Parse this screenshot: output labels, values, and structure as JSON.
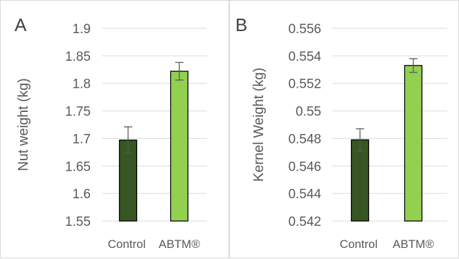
{
  "chart_data": [
    {
      "type": "bar",
      "panel_label": "A",
      "title": "",
      "xlabel": "",
      "ylabel": "Nut weight (kg)",
      "categories": [
        "Control",
        "ABTM®"
      ],
      "values": [
        1.697,
        1.822
      ],
      "errors": [
        0.024,
        0.016
      ],
      "colors": [
        "#375623",
        "#92d050"
      ],
      "ylim": [
        1.55,
        1.9
      ],
      "yticks": [
        1.55,
        1.6,
        1.65,
        1.7,
        1.75,
        1.8,
        1.85,
        1.9
      ],
      "ytick_labels": [
        "1.55",
        "1.6",
        "1.65",
        "1.7",
        "1.75",
        "1.8",
        "1.85",
        "1.9"
      ],
      "grid": true,
      "legend": "none"
    },
    {
      "type": "bar",
      "panel_label": "B",
      "title": "",
      "xlabel": "",
      "ylabel": "Kernel Weight (kg)",
      "categories": [
        "Control",
        "ABTM®"
      ],
      "values": [
        0.5479,
        0.5533
      ],
      "errors": [
        0.0008,
        0.0005
      ],
      "colors": [
        "#375623",
        "#92d050"
      ],
      "ylim": [
        0.542,
        0.556
      ],
      "yticks": [
        0.542,
        0.544,
        0.546,
        0.548,
        0.55,
        0.552,
        0.554,
        0.556
      ],
      "ytick_labels": [
        "0.542",
        "0.544",
        "0.546",
        "0.548",
        "0.55",
        "0.552",
        "0.554",
        "0.556"
      ],
      "grid": true,
      "legend": "none"
    }
  ]
}
